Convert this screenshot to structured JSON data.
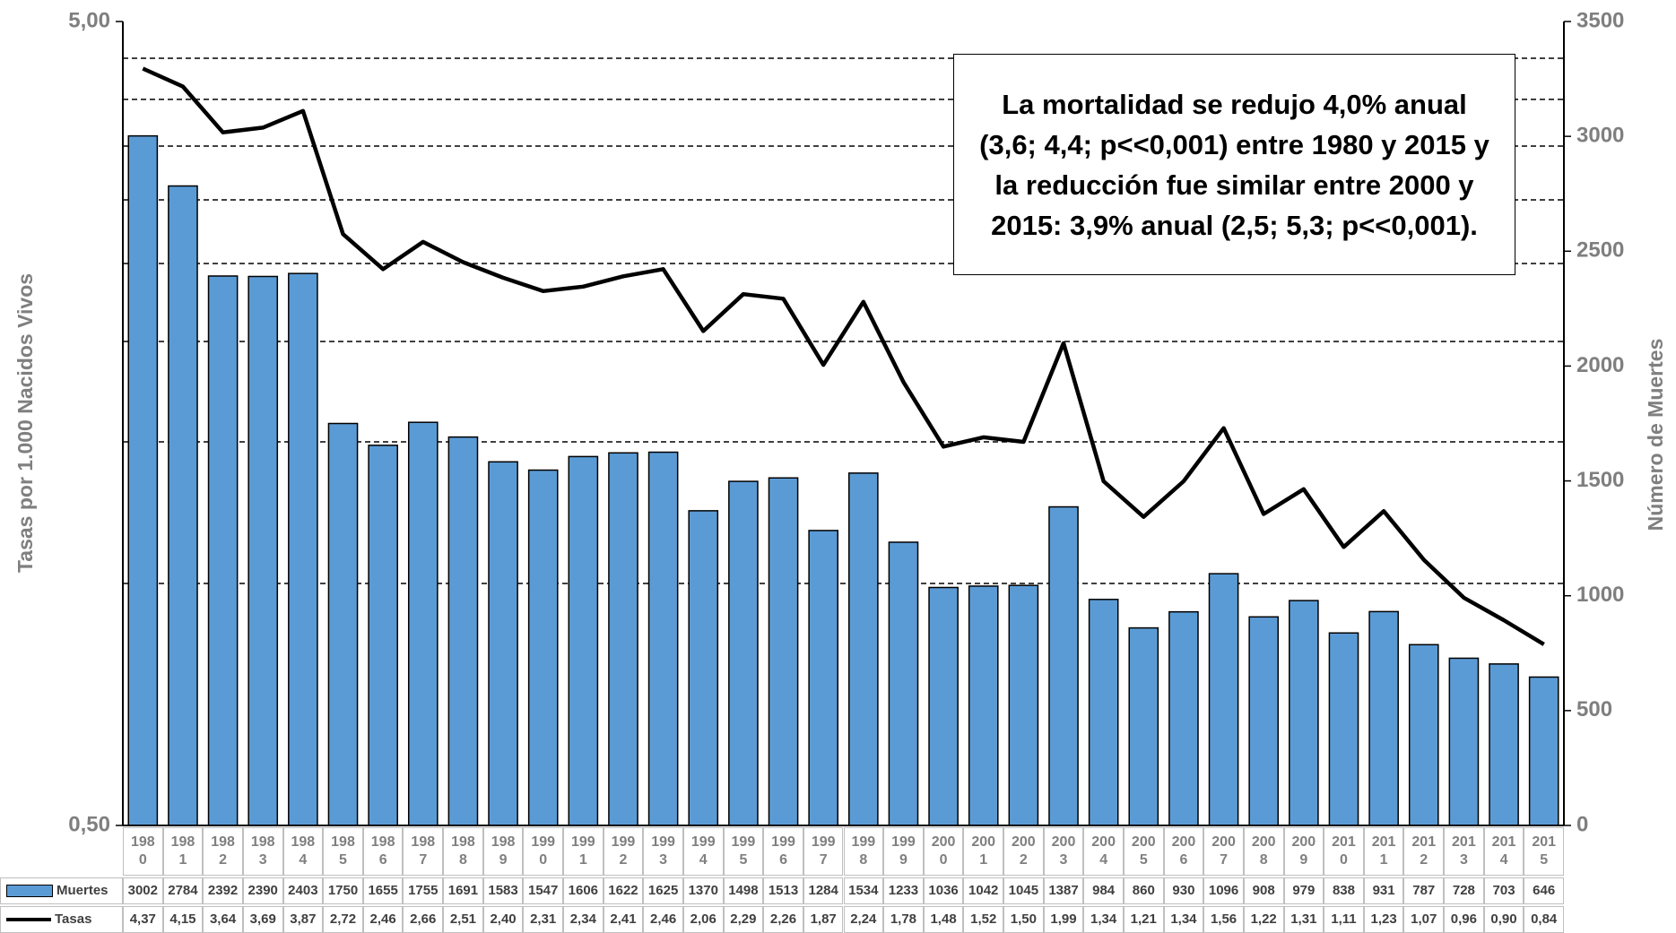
{
  "chart_data": {
    "type": "bar",
    "y_label": "Tasas por 1.000 Nacidos Vivos",
    "y2_label": "Número de Muertes",
    "annotation": "La mortalidad se redujo 4,0% anual (3,6; 4,4; p<<0,001) entre 1980 y 2015 y la reducción fue similar entre 2000 y 2015: 3,9% anual (2,5; 5,3; p<<0,001).",
    "categories": [
      "1980",
      "1981",
      "1982",
      "1983",
      "1984",
      "1985",
      "1986",
      "1987",
      "1988",
      "1989",
      "1990",
      "1991",
      "1992",
      "1993",
      "1994",
      "1995",
      "1996",
      "1997",
      "1998",
      "1999",
      "2000",
      "2001",
      "2002",
      "2003",
      "2004",
      "2005",
      "2006",
      "2007",
      "2008",
      "2009",
      "2010",
      "2011",
      "2012",
      "2013",
      "2014",
      "2015"
    ],
    "series": [
      {
        "name": "Muertes",
        "type": "bar",
        "axis": "y2",
        "color": "#5b9bd5",
        "values": [
          3002,
          2784,
          2392,
          2390,
          2403,
          1750,
          1655,
          1755,
          1691,
          1583,
          1547,
          1606,
          1622,
          1625,
          1370,
          1498,
          1513,
          1284,
          1534,
          1233,
          1036,
          1042,
          1045,
          1387,
          984,
          860,
          930,
          1096,
          908,
          979,
          838,
          931,
          787,
          728,
          703,
          646
        ]
      },
      {
        "name": "Tasas",
        "type": "line",
        "axis": "y",
        "color": "#000000",
        "values": [
          4.37,
          4.15,
          3.64,
          3.69,
          3.87,
          2.72,
          2.46,
          2.66,
          2.51,
          2.4,
          2.31,
          2.34,
          2.41,
          2.46,
          2.06,
          2.29,
          2.26,
          1.87,
          2.24,
          1.78,
          1.48,
          1.52,
          1.5,
          1.99,
          1.34,
          1.21,
          1.34,
          1.56,
          1.22,
          1.31,
          1.11,
          1.23,
          1.07,
          0.96,
          0.9,
          0.84
        ],
        "value_labels": [
          "4,37",
          "4,15",
          "3,64",
          "3,69",
          "3,87",
          "2,72",
          "2,46",
          "2,66",
          "2,51",
          "2,40",
          "2,31",
          "2,34",
          "2,41",
          "2,46",
          "2,06",
          "2,29",
          "2,26",
          "1,87",
          "2,24",
          "1,78",
          "1,48",
          "1,52",
          "1,50",
          "1,99",
          "1,34",
          "1,21",
          "1,34",
          "1,56",
          "1,22",
          "1,31",
          "1,11",
          "1,23",
          "1,07",
          "0,96",
          "0,90",
          "0,84"
        ]
      }
    ],
    "ylim": [
      0.5,
      5
    ],
    "yscale": "log",
    "yticks": [
      {
        "value": 0.5,
        "label": "0,50"
      },
      {
        "value": 5,
        "label": "5,00"
      }
    ],
    "ygrid": [
      1,
      1.5,
      2,
      2.5,
      3,
      3.5,
      4,
      4.5
    ],
    "y2lim": [
      0,
      3500
    ],
    "y2ticks": [
      0,
      500,
      1000,
      1500,
      2000,
      2500,
      3000,
      3500
    ],
    "legend": "data-table"
  }
}
